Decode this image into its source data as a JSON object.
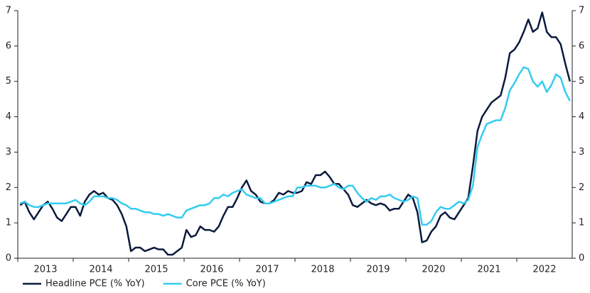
{
  "chart_data": {
    "type": "line",
    "categories": [
      null,
      null,
      null,
      null,
      null,
      null,
      "2013",
      null,
      null,
      null,
      null,
      null,
      null,
      null,
      null,
      null,
      null,
      null,
      "2014",
      null,
      null,
      null,
      null,
      null,
      null,
      null,
      null,
      null,
      null,
      null,
      "2015",
      null,
      null,
      null,
      null,
      null,
      null,
      null,
      null,
      null,
      null,
      null,
      "2016",
      null,
      null,
      null,
      null,
      null,
      null,
      null,
      null,
      null,
      null,
      null,
      "2017",
      null,
      null,
      null,
      null,
      null,
      null,
      null,
      null,
      null,
      null,
      null,
      "2018",
      null,
      null,
      null,
      null,
      null,
      null,
      null,
      null,
      null,
      null,
      null,
      "2019",
      null,
      null,
      null,
      null,
      null,
      null,
      null,
      null,
      null,
      null,
      null,
      "2020",
      null,
      null,
      null,
      null,
      null,
      null,
      null,
      null,
      null,
      null,
      null,
      "2021",
      null,
      null,
      null,
      null,
      null,
      null,
      null,
      null,
      null,
      null,
      null,
      "2022",
      null,
      null,
      null,
      null,
      null
    ],
    "series": [
      {
        "name": "Headline PCE (% YoY)",
        "color": "#0b1a3d",
        "values": [
          1.5,
          1.6,
          1.3,
          1.1,
          1.3,
          1.5,
          1.6,
          1.4,
          1.15,
          1.05,
          1.25,
          1.45,
          1.45,
          1.2,
          1.6,
          1.8,
          1.9,
          1.8,
          1.85,
          1.7,
          1.65,
          1.5,
          1.25,
          0.9,
          0.2,
          0.3,
          0.3,
          0.2,
          0.25,
          0.3,
          0.25,
          0.25,
          0.1,
          0.1,
          0.2,
          0.3,
          0.8,
          0.6,
          0.65,
          0.9,
          0.8,
          0.8,
          0.75,
          0.9,
          1.2,
          1.45,
          1.45,
          1.7,
          2.0,
          2.2,
          1.9,
          1.8,
          1.6,
          1.55,
          1.55,
          1.65,
          1.85,
          1.8,
          1.9,
          1.85,
          1.85,
          1.9,
          2.15,
          2.1,
          2.35,
          2.35,
          2.45,
          2.3,
          2.1,
          2.1,
          1.95,
          1.8,
          1.5,
          1.45,
          1.55,
          1.65,
          1.55,
          1.5,
          1.55,
          1.5,
          1.35,
          1.4,
          1.4,
          1.6,
          1.8,
          1.7,
          1.3,
          0.45,
          0.5,
          0.75,
          0.9,
          1.2,
          1.3,
          1.15,
          1.1,
          1.3,
          1.5,
          1.7,
          2.6,
          3.6,
          4.0,
          4.2,
          4.4,
          4.5,
          4.6,
          5.1,
          5.8,
          5.9,
          6.1,
          6.4,
          6.75,
          6.4,
          6.5,
          6.95,
          6.4,
          6.25,
          6.25,
          6.05,
          5.5,
          5.0
        ]
      },
      {
        "name": "Core PCE (% YoY)",
        "color": "#33ccf0",
        "values": [
          1.55,
          1.6,
          1.5,
          1.45,
          1.45,
          1.5,
          1.55,
          1.55,
          1.55,
          1.55,
          1.55,
          1.6,
          1.65,
          1.55,
          1.5,
          1.6,
          1.75,
          1.75,
          1.75,
          1.7,
          1.7,
          1.65,
          1.55,
          1.5,
          1.4,
          1.4,
          1.35,
          1.3,
          1.3,
          1.25,
          1.25,
          1.2,
          1.25,
          1.2,
          1.15,
          1.15,
          1.35,
          1.4,
          1.45,
          1.5,
          1.5,
          1.55,
          1.7,
          1.7,
          1.8,
          1.75,
          1.85,
          1.9,
          1.95,
          1.8,
          1.75,
          1.7,
          1.7,
          1.55,
          1.55,
          1.6,
          1.65,
          1.7,
          1.75,
          1.75,
          2.0,
          2.0,
          2.05,
          2.05,
          2.05,
          2.0,
          2.0,
          2.05,
          2.1,
          2.0,
          1.95,
          2.05,
          2.05,
          1.85,
          1.7,
          1.6,
          1.7,
          1.65,
          1.75,
          1.75,
          1.8,
          1.7,
          1.65,
          1.6,
          1.65,
          1.75,
          1.7,
          0.95,
          0.95,
          1.05,
          1.3,
          1.45,
          1.4,
          1.4,
          1.5,
          1.6,
          1.55,
          1.65,
          2.05,
          3.15,
          3.5,
          3.8,
          3.85,
          3.9,
          3.9,
          4.25,
          4.75,
          4.95,
          5.2,
          5.4,
          5.35,
          5.0,
          4.85,
          5.0,
          4.7,
          4.9,
          5.2,
          5.1,
          4.7,
          4.45
        ]
      }
    ],
    "ylim": [
      0,
      7
    ],
    "yticks": [
      0,
      1,
      2,
      3,
      4,
      5,
      6,
      7
    ],
    "y2lim": [
      0,
      7
    ],
    "y2ticks": [
      0,
      1,
      2,
      3,
      4,
      5,
      6,
      7
    ],
    "grid": false,
    "legend": "bottom-left"
  }
}
